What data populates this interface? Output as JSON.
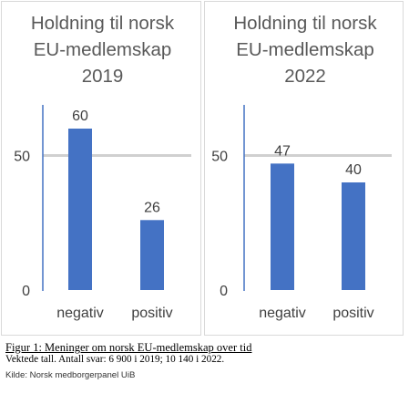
{
  "chart_data": [
    {
      "type": "bar",
      "title_lines": [
        "Holdning til norsk",
        "EU-medlemskap",
        "2019"
      ],
      "categories": [
        "negativ",
        "positiv"
      ],
      "values": [
        60,
        26
      ],
      "yticks": [
        0,
        50
      ],
      "ylim": [
        0,
        60
      ],
      "grid": false,
      "reference_line": 50,
      "colors": {
        "bar": "#4472c4",
        "axis": "#4472c4",
        "reference_line": "#d0d0d0"
      }
    },
    {
      "type": "bar",
      "title_lines": [
        "Holdning til norsk",
        "EU-medlemskap",
        "2022"
      ],
      "categories": [
        "negativ",
        "positiv"
      ],
      "values": [
        47,
        40
      ],
      "yticks": [
        0,
        50
      ],
      "ylim": [
        0,
        60
      ],
      "grid": false,
      "reference_line": 50,
      "colors": {
        "bar": "#4472c4",
        "axis": "#4472c4",
        "reference_line": "#d0d0d0"
      }
    }
  ],
  "caption": {
    "title": "Figur 1: Meninger om norsk EU-medlemskap over tid",
    "note": "Vektede tall. Antall svar: 6 900 i 2019; 10 140 i 2022.",
    "source": "Kilde: Norsk medborgerpanel UiB"
  }
}
